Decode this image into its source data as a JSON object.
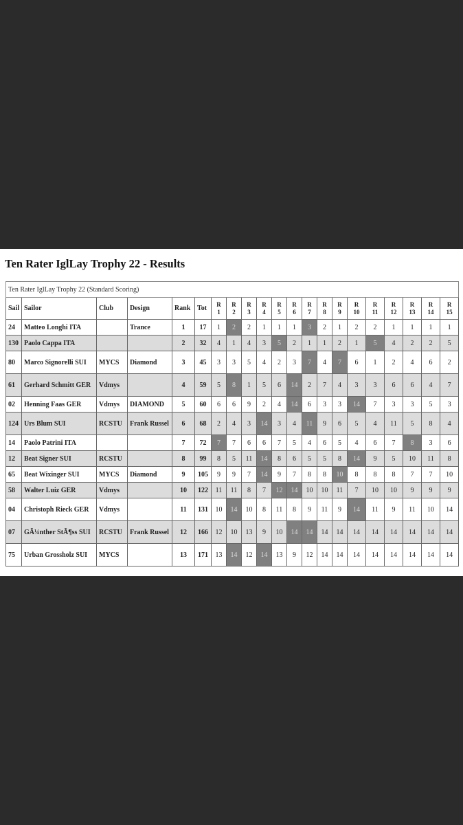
{
  "title": "Ten Rater IglLay Trophy 22 - Results",
  "caption": "Ten Rater IglLay Trophy 22 (Standard Scoring)",
  "columns": [
    "Sail",
    "Sailor",
    "Club",
    "Design",
    "Rank",
    "Tot"
  ],
  "race_headers": [
    "R 1",
    "R 2",
    "R 3",
    "R 4",
    "R 5",
    "R 6",
    "R 7",
    "R 8",
    "R 9",
    "R 10",
    "R 11",
    "R 12",
    "R 13",
    "R 14",
    "R 15"
  ],
  "colors": {
    "background": "#2b2b2b",
    "alt_row": "#dcdcdc",
    "discard": "#808080"
  },
  "rows": [
    {
      "sail": "24",
      "sailor": "Matteo Longhi ITA",
      "club": "",
      "design": "Trance",
      "rank": "1",
      "tot": "17",
      "races": [
        "1",
        "2",
        "2",
        "1",
        "1",
        "1",
        "3",
        "2",
        "1",
        "2",
        "2",
        "1",
        "1",
        "1",
        "1"
      ],
      "discards": [
        2,
        7
      ]
    },
    {
      "sail": "130",
      "sailor": "Paolo Cappa ITA",
      "club": "",
      "design": "",
      "rank": "2",
      "tot": "32",
      "races": [
        "4",
        "1",
        "4",
        "3",
        "5",
        "2",
        "1",
        "1",
        "2",
        "1",
        "5",
        "4",
        "2",
        "2",
        "5"
      ],
      "discards": [
        5,
        11
      ]
    },
    {
      "sail": "80",
      "sailor": "Marco Signorelli SUI",
      "club": "MYCS",
      "design": "Diamond",
      "rank": "3",
      "tot": "45",
      "races": [
        "3",
        "3",
        "5",
        "4",
        "2",
        "3",
        "7",
        "4",
        "7",
        "6",
        "1",
        "2",
        "4",
        "6",
        "2"
      ],
      "discards": [
        7,
        9
      ]
    },
    {
      "sail": "61",
      "sailor": "Gerhard Schmitt GER",
      "club": "Vdmys",
      "design": "",
      "rank": "4",
      "tot": "59",
      "races": [
        "5",
        "8",
        "1",
        "5",
        "6",
        "14",
        "2",
        "7",
        "4",
        "3",
        "3",
        "6",
        "6",
        "4",
        "7"
      ],
      "discards": [
        2,
        6
      ]
    },
    {
      "sail": "02",
      "sailor": "Henning Faas GER",
      "club": "Vdmys",
      "design": "DIAMOND",
      "rank": "5",
      "tot": "60",
      "races": [
        "6",
        "6",
        "9",
        "2",
        "4",
        "14",
        "6",
        "3",
        "3",
        "14",
        "7",
        "3",
        "3",
        "5",
        "3"
      ],
      "discards": [
        6,
        10
      ]
    },
    {
      "sail": "124",
      "sailor": "Urs Blum SUI",
      "club": "RCSTU",
      "design": "Frank Russel",
      "rank": "6",
      "tot": "68",
      "races": [
        "2",
        "4",
        "3",
        "14",
        "3",
        "4",
        "11",
        "9",
        "6",
        "5",
        "4",
        "11",
        "5",
        "8",
        "4"
      ],
      "discards": [
        4,
        7
      ]
    },
    {
      "sail": "14",
      "sailor": "Paolo Patrini ITA",
      "club": "",
      "design": "",
      "rank": "7",
      "tot": "72",
      "races": [
        "7",
        "7",
        "6",
        "6",
        "7",
        "5",
        "4",
        "6",
        "5",
        "4",
        "6",
        "7",
        "8",
        "3",
        "6"
      ],
      "discards": [
        1,
        13
      ]
    },
    {
      "sail": "12",
      "sailor": "Beat Signer SUI",
      "club": "RCSTU",
      "design": "",
      "rank": "8",
      "tot": "99",
      "races": [
        "8",
        "5",
        "11",
        "14",
        "8",
        "6",
        "5",
        "5",
        "8",
        "14",
        "9",
        "5",
        "10",
        "11",
        "8"
      ],
      "discards": [
        4,
        10
      ]
    },
    {
      "sail": "65",
      "sailor": "Beat Wixinger SUI",
      "club": "MYCS",
      "design": "Diamond",
      "rank": "9",
      "tot": "105",
      "races": [
        "9",
        "9",
        "7",
        "14",
        "9",
        "7",
        "8",
        "8",
        "10",
        "8",
        "8",
        "8",
        "7",
        "7",
        "10"
      ],
      "discards": [
        4,
        9
      ]
    },
    {
      "sail": "58",
      "sailor": "Walter Luiz GER",
      "club": "Vdmys",
      "design": "",
      "rank": "10",
      "tot": "122",
      "races": [
        "11",
        "11",
        "8",
        "7",
        "12",
        "14",
        "10",
        "10",
        "11",
        "7",
        "10",
        "10",
        "9",
        "9",
        "9"
      ],
      "discards": [
        5,
        6
      ]
    },
    {
      "sail": "04",
      "sailor": "Christoph Rieck GER",
      "club": "Vdmys",
      "design": "",
      "rank": "11",
      "tot": "131",
      "races": [
        "10",
        "14",
        "10",
        "8",
        "11",
        "8",
        "9",
        "11",
        "9",
        "14",
        "11",
        "9",
        "11",
        "10",
        "14"
      ],
      "discards": [
        2,
        10
      ]
    },
    {
      "sail": "07",
      "sailor": "GÃ¼nther StÃ¶ss SUI",
      "club": "RCSTU",
      "design": "Frank Russel",
      "rank": "12",
      "tot": "166",
      "races": [
        "12",
        "10",
        "13",
        "9",
        "10",
        "14",
        "14",
        "14",
        "14",
        "14",
        "14",
        "14",
        "14",
        "14",
        "14"
      ],
      "discards": [
        6,
        7
      ]
    },
    {
      "sail": "75",
      "sailor": "Urban Grossholz SUI",
      "club": "MYCS",
      "design": "",
      "rank": "13",
      "tot": "171",
      "races": [
        "13",
        "14",
        "12",
        "14",
        "13",
        "9",
        "12",
        "14",
        "14",
        "14",
        "14",
        "14",
        "14",
        "14",
        "14"
      ],
      "discards": [
        2,
        4
      ]
    }
  ]
}
